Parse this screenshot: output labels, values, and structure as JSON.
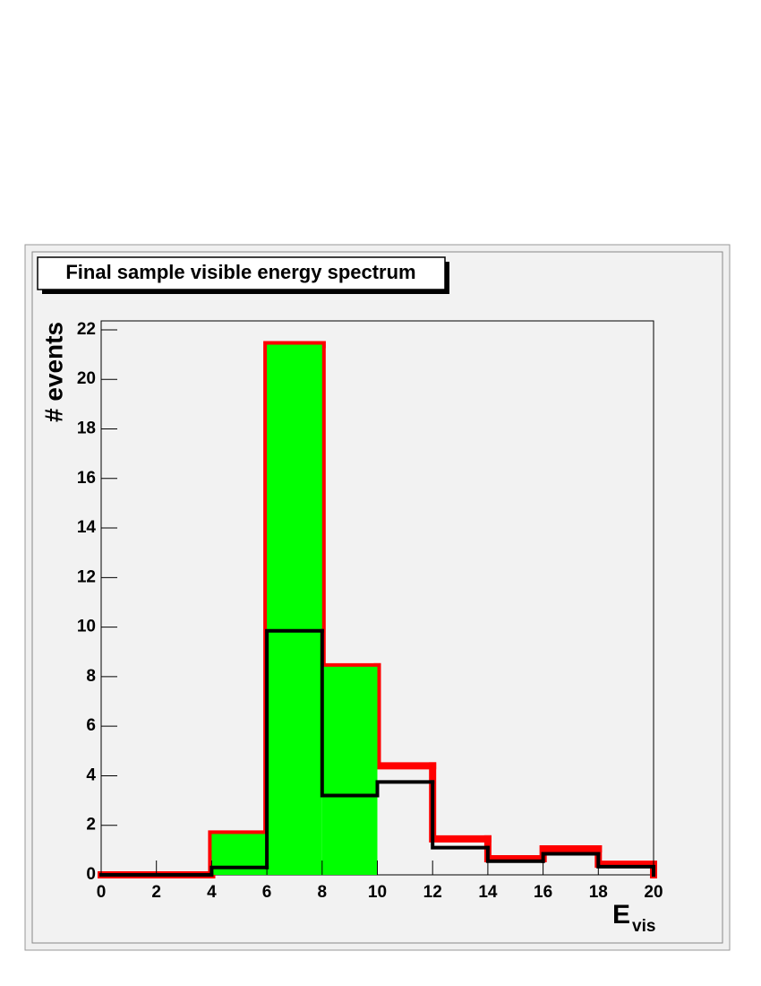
{
  "chart_data": {
    "type": "histogram",
    "title": "Final sample visible energy spectrum",
    "ylabel": "# events",
    "xlabel": {
      "main": "E",
      "sub": "vis"
    },
    "bins": [
      0,
      2,
      4,
      6,
      8,
      10,
      12,
      14,
      16,
      18,
      20
    ],
    "series": [
      {
        "color": "#ff0000",
        "fill": false,
        "values": [
          0,
          0,
          1.65,
          21.4,
          8.4,
          4.4,
          1.45,
          0.65,
          1.05,
          0.43
        ]
      },
      {
        "color": "#00ff00",
        "fill": true,
        "values": [
          0,
          0,
          1.65,
          21.4,
          8.4,
          0,
          0,
          0,
          0,
          0
        ]
      },
      {
        "color": "#000000",
        "fill": false,
        "values": [
          0,
          0,
          0.3,
          9.85,
          3.2,
          3.75,
          1.1,
          0.55,
          0.85,
          0.33
        ]
      }
    ],
    "xlim": [
      0,
      20
    ],
    "xticks": [
      0,
      2,
      4,
      6,
      8,
      10,
      12,
      14,
      16,
      18,
      20
    ],
    "ylim": [
      0,
      22.36
    ],
    "yticks": [
      0,
      2,
      4,
      6,
      8,
      10,
      12,
      14,
      16,
      18,
      20,
      22
    ]
  }
}
